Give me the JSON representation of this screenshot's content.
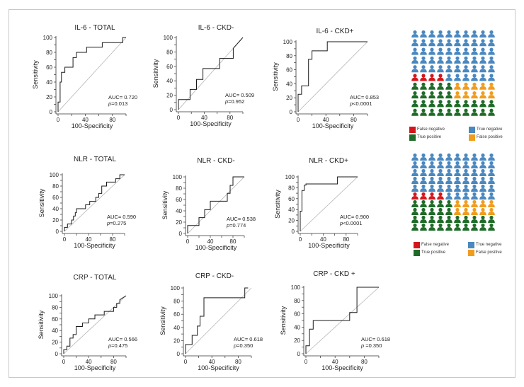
{
  "colors": {
    "true_negative": "#4a88c0",
    "false_negative": "#d4161c",
    "true_positive": "#1f6b28",
    "false_positive": "#f09d1e",
    "curve": "#1a1a1a",
    "diagonal": "#b5b5b5"
  },
  "chart_data": [
    {
      "type": "line",
      "id": "il6-total",
      "title": "IL-6 - TOTAL",
      "xlabel": "100-Specificity",
      "ylabel": "Sensitivity",
      "xlim": [
        0,
        100
      ],
      "ylim": [
        0,
        100
      ],
      "xticks": [
        "0",
        "40",
        "80"
      ],
      "yticks": [
        "0",
        "10",
        "20",
        "30",
        "40",
        "50",
        "60",
        "70",
        "80",
        "90",
        "100"
      ],
      "auc": "AUC= 0.720",
      "p_prefix": "p",
      "p_text": "=0.013",
      "x": [
        0,
        0,
        3,
        3,
        5,
        5,
        10,
        10,
        22,
        22,
        27,
        27,
        42,
        42,
        65,
        65,
        95,
        95,
        100
      ],
      "y": [
        0,
        13,
        13,
        40,
        40,
        53,
        53,
        60,
        60,
        73,
        73,
        80,
        80,
        87,
        87,
        93,
        93,
        100,
        100
      ]
    },
    {
      "type": "line",
      "id": "il6-ckd-neg",
      "title": "IL-6 - CKD-",
      "xlabel": "100-Specificity",
      "ylabel": "Sensitivity",
      "xlim": [
        0,
        100
      ],
      "ylim": [
        0,
        100
      ],
      "xticks": [
        "0",
        "40",
        "80"
      ],
      "yticks": [
        "0",
        "10",
        "20",
        "30",
        "40",
        "50",
        "60",
        "70",
        "80",
        "90",
        "100"
      ],
      "auc": "AUC= 0.509",
      "p_prefix": "p",
      "p_text": "=0.952",
      "x": [
        0,
        0,
        18,
        18,
        28,
        28,
        38,
        38,
        64,
        64,
        85,
        85,
        100
      ],
      "y": [
        0,
        14,
        14,
        28,
        28,
        42,
        42,
        57,
        57,
        71,
        71,
        85,
        100
      ]
    },
    {
      "type": "line",
      "id": "il6-ckd-pos",
      "title": "IL-6  - CKD+",
      "xlabel": "100-Specificity",
      "ylabel": "Sensitivity",
      "xlim": [
        0,
        100
      ],
      "ylim": [
        0,
        100
      ],
      "xticks": [
        "0",
        "40",
        "80"
      ],
      "yticks": [
        "0",
        "10",
        "20",
        "30",
        "40",
        "50",
        "60",
        "70",
        "80",
        "90",
        "100"
      ],
      "auc": "AUC= 0.853",
      "p_prefix": "p",
      "p_text": "<0.0001",
      "x": [
        0,
        0,
        5,
        5,
        15,
        15,
        20,
        20,
        42,
        42,
        100
      ],
      "y": [
        0,
        25,
        25,
        37,
        37,
        75,
        75,
        87,
        87,
        100,
        100
      ]
    },
    {
      "type": "line",
      "id": "nlr-total",
      "title": "NLR - TOTAL",
      "xlabel": "100-Specificity",
      "ylabel": "Sensitivity",
      "xlim": [
        0,
        100
      ],
      "ylim": [
        0,
        100
      ],
      "xticks": [
        "0",
        "40",
        "80"
      ],
      "yticks": [
        "0",
        "10",
        "20",
        "30",
        "40",
        "50",
        "60",
        "70",
        "80",
        "90",
        "100"
      ],
      "auc": "AUC= 0.590",
      "p_prefix": "p",
      "p_text": "=0.275",
      "x": [
        0,
        0,
        5,
        5,
        12,
        12,
        15,
        15,
        18,
        18,
        20,
        20,
        35,
        35,
        42,
        42,
        52,
        52,
        57,
        57,
        62,
        62,
        70,
        70,
        85,
        85,
        92,
        92,
        100
      ],
      "y": [
        0,
        7,
        7,
        13,
        13,
        20,
        20,
        27,
        27,
        33,
        33,
        40,
        40,
        47,
        47,
        53,
        53,
        60,
        60,
        67,
        67,
        80,
        80,
        87,
        87,
        93,
        93,
        100,
        100
      ]
    },
    {
      "type": "line",
      "id": "nlr-ckd-neg",
      "title": "NLR - CKD-",
      "xlabel": "100-Specificity",
      "ylabel": "Sensitivity",
      "xlim": [
        0,
        100
      ],
      "ylim": [
        0,
        100
      ],
      "xticks": [
        "0",
        "40",
        "80"
      ],
      "yticks": [
        "0",
        "10",
        "20",
        "30",
        "40",
        "50",
        "60",
        "70",
        "80",
        "90",
        "100"
      ],
      "auc": "AUC= 0.538",
      "p_prefix": "p",
      "p_text": "=0.774",
      "x": [
        0,
        0,
        20,
        20,
        30,
        30,
        40,
        40,
        70,
        70,
        75,
        75,
        80,
        80,
        100
      ],
      "y": [
        0,
        14,
        14,
        28,
        28,
        42,
        42,
        57,
        57,
        71,
        71,
        85,
        85,
        100,
        100
      ]
    },
    {
      "type": "line",
      "id": "nlr-ckd-pos",
      "title": "NLR - CKD+",
      "xlabel": "100-Specificity",
      "ylabel": "Sensitivity",
      "xlim": [
        0,
        100
      ],
      "ylim": [
        0,
        100
      ],
      "xticks": [
        "0",
        "40",
        "80"
      ],
      "yticks": [
        "0",
        "10",
        "20",
        "30",
        "40",
        "50",
        "60",
        "70",
        "80",
        "90",
        "100"
      ],
      "auc": "AUC= 0.900",
      "p_prefix": "p",
      "p_text": "<0.0001",
      "x": [
        0,
        0,
        3,
        3,
        7,
        7,
        10,
        10,
        65,
        65,
        100
      ],
      "y": [
        0,
        37,
        37,
        75,
        75,
        85,
        85,
        87,
        87,
        100,
        100
      ]
    },
    {
      "type": "line",
      "id": "crp-total",
      "title": "CRP - TOTAL",
      "xlabel": "100-Specificity",
      "ylabel": "Sensitivity",
      "xlim": [
        0,
        100
      ],
      "ylim": [
        0,
        100
      ],
      "xticks": [
        "0",
        "40",
        "80"
      ],
      "yticks": [
        "0",
        "10",
        "20",
        "30",
        "40",
        "50",
        "60",
        "70",
        "80",
        "90",
        "100"
      ],
      "auc": "AUC= 0.566",
      "p_prefix": "p",
      "p_text": "=0.475",
      "x": [
        0,
        0,
        5,
        5,
        10,
        10,
        15,
        15,
        20,
        20,
        30,
        30,
        40,
        40,
        50,
        50,
        65,
        65,
        80,
        80,
        85,
        85,
        90,
        90,
        100
      ],
      "y": [
        0,
        7,
        7,
        13,
        13,
        27,
        27,
        33,
        33,
        47,
        47,
        53,
        53,
        60,
        60,
        67,
        67,
        73,
        73,
        80,
        80,
        87,
        87,
        93,
        100
      ]
    },
    {
      "type": "line",
      "id": "crp-ckd-neg",
      "title": "CRP - CKD-",
      "xlabel": "100-Specificity",
      "ylabel": "Sensitivity",
      "xlim": [
        0,
        100
      ],
      "ylim": [
        0,
        100
      ],
      "xticks": [
        "0",
        "40",
        "80"
      ],
      "yticks": [
        "0",
        "10",
        "20",
        "30",
        "40",
        "50",
        "60",
        "70",
        "80",
        "90",
        "100"
      ],
      "auc": "AUC= 0.618",
      "p_prefix": "p",
      "p_text": "=0.350",
      "x": [
        0,
        0,
        10,
        10,
        18,
        18,
        22,
        22,
        28,
        28,
        55,
        55,
        90,
        90,
        95
      ],
      "y": [
        0,
        14,
        14,
        28,
        28,
        42,
        42,
        57,
        57,
        85,
        85,
        85,
        85,
        100,
        100
      ]
    },
    {
      "type": "line",
      "id": "crp-ckd-pos",
      "title": "CRP - CKD +",
      "xlabel": "100-Specificity",
      "ylabel": "Sensitivity",
      "xlim": [
        0,
        100
      ],
      "ylim": [
        0,
        100
      ],
      "xticks": [
        "0",
        "40",
        "80"
      ],
      "yticks": [
        "0",
        "10",
        "20",
        "30",
        "40",
        "50",
        "60",
        "70",
        "80",
        "90",
        "100"
      ],
      "auc": "AUC= 0.618",
      "p_prefix": "p",
      "p_text": " =0.350",
      "x": [
        0,
        0,
        5,
        5,
        10,
        10,
        25,
        25,
        60,
        60,
        70,
        70,
        100
      ],
      "y": [
        0,
        12,
        12,
        37,
        37,
        50,
        50,
        50,
        50,
        62,
        62,
        100,
        100
      ]
    }
  ],
  "icon_grids": [
    {
      "id": "grid-1",
      "rows": 10,
      "cols": 10,
      "row_pattern": [
        "TN",
        "TN",
        "TN",
        "TN",
        "TN",
        "FN4",
        "FP_TP",
        "TP_FP",
        "TP",
        "TP"
      ],
      "legend": {
        "false_negative": "False negative",
        "true_negative": "True negative",
        "true_positive": "True positive",
        "false_positive": "False positive"
      }
    },
    {
      "id": "grid-2",
      "rows": 10,
      "cols": 10,
      "row_pattern": [
        "TN",
        "TN",
        "TN",
        "TN",
        "TN",
        "FN4",
        "FP_TP",
        "TP_FP",
        "TP",
        "TP"
      ],
      "legend": {
        "false_negative": "False negative",
        "true_negative": "True negative",
        "true_positive": "True positive",
        "false_positive": "False positive"
      }
    }
  ]
}
